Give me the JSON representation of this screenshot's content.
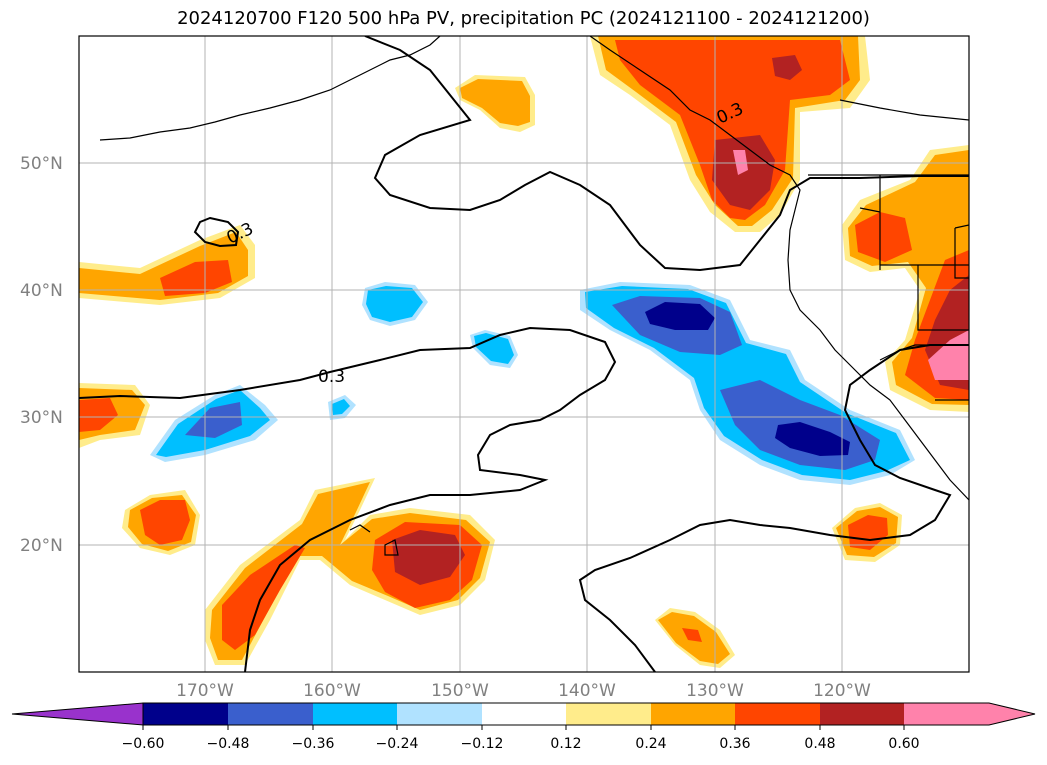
{
  "title": "2024120700 F120 500 hPa PV, precipitation PC (2024121100 - 2024121200)",
  "map": {
    "lat_labels": [
      "50°N",
      "40°N",
      "30°N",
      "20°N"
    ],
    "lon_labels": [
      "170°W",
      "160°W",
      "150°W",
      "140°W",
      "130°W",
      "120°W"
    ],
    "contour_labels": [
      "0.3",
      "0.3",
      "0.3"
    ]
  },
  "colorbar": {
    "ticks": [
      "−0.60",
      "−0.48",
      "−0.36",
      "−0.24",
      "−0.12",
      "0.12",
      "0.24",
      "0.36",
      "0.48",
      "0.60"
    ],
    "colors": {
      "under": "#9932cc",
      "neg_060": "#00008b",
      "neg_048": "#3a5fcd",
      "neg_036": "#00bfff",
      "neg_024": "#b0e2ff",
      "neutral": "#ffffff",
      "pos_012": "#ffec8b",
      "pos_024": "#ffa500",
      "pos_036": "#ff4500",
      "pos_048": "#b22222",
      "over": "#ff82ab"
    }
  }
}
